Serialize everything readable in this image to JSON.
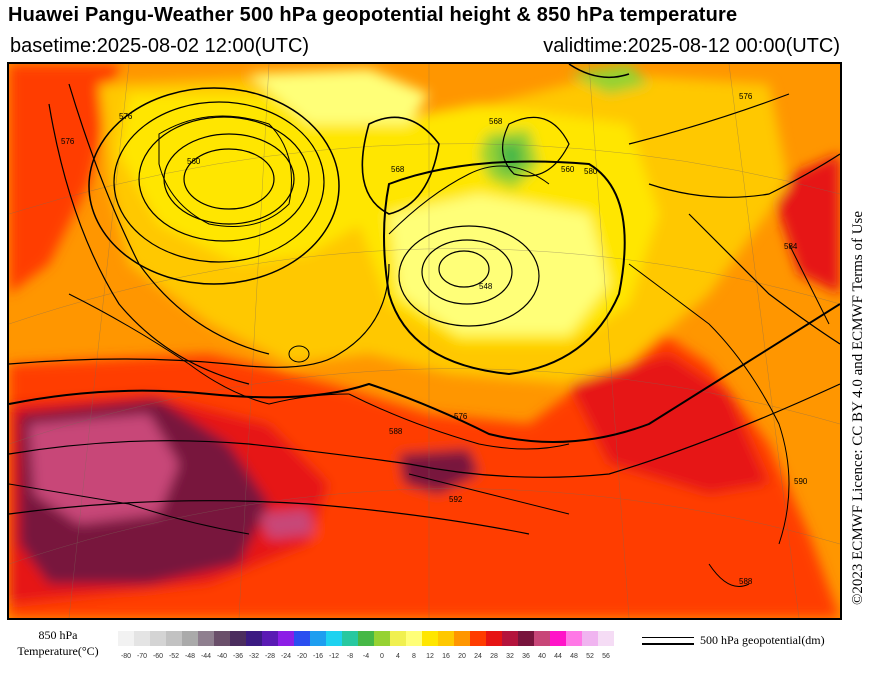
{
  "header": {
    "title": "Huawei Pangu-Weather 500 hPa geopotential height & 850 hPa temperature",
    "basetime": "basetime:2025-08-02 12:00(UTC)",
    "validtime": "validtime:2025-08-12 00:00(UTC)"
  },
  "licence": "©2023 ECMWF Licence: CC BY 4.0 and ECMWF Terms of Use",
  "legend": {
    "temperature_label_line1": "850 hPa",
    "temperature_label_line2": "Temperature(°C)",
    "colorbar": [
      {
        "value": "-80",
        "color": "#f2f2f2"
      },
      {
        "value": "-70",
        "color": "#e4e4e4"
      },
      {
        "value": "-60",
        "color": "#d4d4d4"
      },
      {
        "value": "-52",
        "color": "#c2c2c2"
      },
      {
        "value": "-48",
        "color": "#aaaaaa"
      },
      {
        "value": "-44",
        "color": "#8f7f8f"
      },
      {
        "value": "-40",
        "color": "#6a4f6a"
      },
      {
        "value": "-36",
        "color": "#4b2d5e"
      },
      {
        "value": "-32",
        "color": "#3b1a82"
      },
      {
        "value": "-28",
        "color": "#5a1ab4"
      },
      {
        "value": "-24",
        "color": "#8c1ee6"
      },
      {
        "value": "-20",
        "color": "#2a4ef0"
      },
      {
        "value": "-16",
        "color": "#1e9ef0"
      },
      {
        "value": "-12",
        "color": "#1ed2f0"
      },
      {
        "value": "-8",
        "color": "#28c8a0"
      },
      {
        "value": "-4",
        "color": "#46b846"
      },
      {
        "value": "0",
        "color": "#96d232"
      },
      {
        "value": "4",
        "color": "#f0f050"
      },
      {
        "value": "8",
        "color": "#ffff78"
      },
      {
        "value": "12",
        "color": "#ffe600"
      },
      {
        "value": "16",
        "color": "#ffc800"
      },
      {
        "value": "20",
        "color": "#ff9600"
      },
      {
        "value": "24",
        "color": "#ff3c00"
      },
      {
        "value": "28",
        "color": "#e61414"
      },
      {
        "value": "32",
        "color": "#b4143c"
      },
      {
        "value": "36",
        "color": "#78143c"
      },
      {
        "value": "40",
        "color": "#c84678"
      },
      {
        "value": "44",
        "color": "#ff14c8"
      },
      {
        "value": "48",
        "color": "#ff78e6"
      },
      {
        "value": "52",
        "color": "#f0b4f0"
      },
      {
        "value": "56",
        "color": "#f5dcf5"
      }
    ],
    "geopotential_label": "500 hPa geopotential(dm)"
  },
  "map": {
    "contour_labels": [
      "576",
      "560",
      "568",
      "576",
      "568",
      "580",
      "548",
      "560",
      "576",
      "588",
      "576",
      "590",
      "592",
      "584",
      "588"
    ]
  }
}
